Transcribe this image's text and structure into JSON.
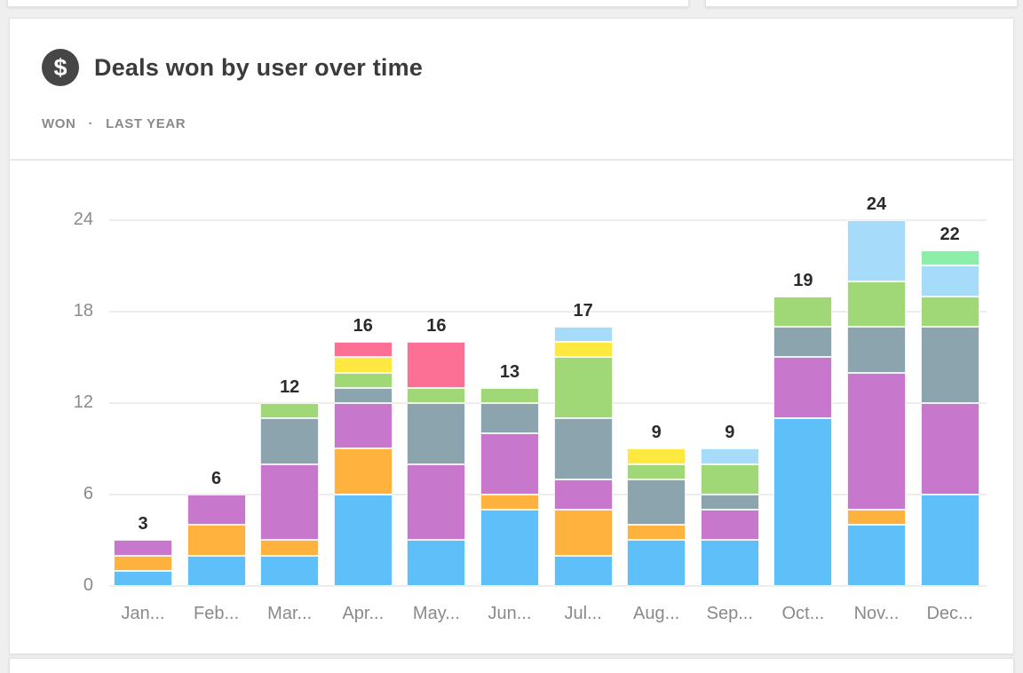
{
  "header": {
    "icon_glyph": "$",
    "title": "Deals won by user over time",
    "metric": "WON",
    "separator": "·",
    "period": "LAST YEAR"
  },
  "colors": {
    "card_background": "#ffffff",
    "page_background": "#efefef",
    "title_text": "#3b3b3b",
    "subtitle_text": "#8a8a8a",
    "axis_text": "#8a8a8a",
    "value_label_text": "#2b2b2b",
    "gridline": "#ededed",
    "icon_background": "#464646"
  },
  "chart_data": {
    "type": "bar",
    "subtype": "stacked",
    "title": "Deals won by user over time",
    "categories": [
      "Jan...",
      "Feb...",
      "Mar...",
      "Apr...",
      "May...",
      "Jun...",
      "Jul...",
      "Aug...",
      "Sep...",
      "Oct...",
      "Nov...",
      "Dec..."
    ],
    "totals": [
      3,
      6,
      12,
      16,
      16,
      13,
      17,
      9,
      9,
      19,
      24,
      22
    ],
    "series": [
      {
        "name": "blue",
        "color": "#5fbff8",
        "values": [
          1,
          2,
          2,
          6,
          3,
          5,
          2,
          3,
          3,
          11,
          4,
          6
        ]
      },
      {
        "name": "orange",
        "color": "#ffb23d",
        "values": [
          1,
          2,
          1,
          3,
          0,
          1,
          3,
          1,
          0,
          0,
          1,
          0
        ]
      },
      {
        "name": "purple",
        "color": "#c778cd",
        "values": [
          1,
          2,
          5,
          3,
          5,
          4,
          2,
          0,
          2,
          4,
          9,
          6
        ]
      },
      {
        "name": "gray",
        "color": "#8ba4ae",
        "values": [
          0,
          0,
          3,
          1,
          4,
          2,
          4,
          3,
          1,
          2,
          3,
          5
        ]
      },
      {
        "name": "green",
        "color": "#a0d878",
        "values": [
          0,
          0,
          1,
          1,
          1,
          1,
          4,
          1,
          2,
          2,
          3,
          2
        ]
      },
      {
        "name": "yellow",
        "color": "#ffe83f",
        "values": [
          0,
          0,
          0,
          1,
          0,
          0,
          1,
          1,
          0,
          0,
          0,
          0
        ]
      },
      {
        "name": "pink",
        "color": "#fd7096",
        "values": [
          0,
          0,
          0,
          1,
          3,
          0,
          0,
          0,
          0,
          0,
          0,
          0
        ]
      },
      {
        "name": "light-blue",
        "color": "#a6dcfa",
        "values": [
          0,
          0,
          0,
          0,
          0,
          0,
          1,
          0,
          1,
          0,
          4,
          2
        ]
      },
      {
        "name": "mint",
        "color": "#8beea9",
        "values": [
          0,
          0,
          0,
          0,
          0,
          0,
          0,
          0,
          0,
          0,
          0,
          1
        ]
      }
    ],
    "stack_order": "first series at bottom",
    "y_ticks": [
      0,
      6,
      12,
      18,
      24
    ],
    "ylim": [
      0,
      24
    ],
    "xlabel": "",
    "ylabel": "",
    "grid": true,
    "legend": false,
    "value_labels": "total above each bar"
  }
}
